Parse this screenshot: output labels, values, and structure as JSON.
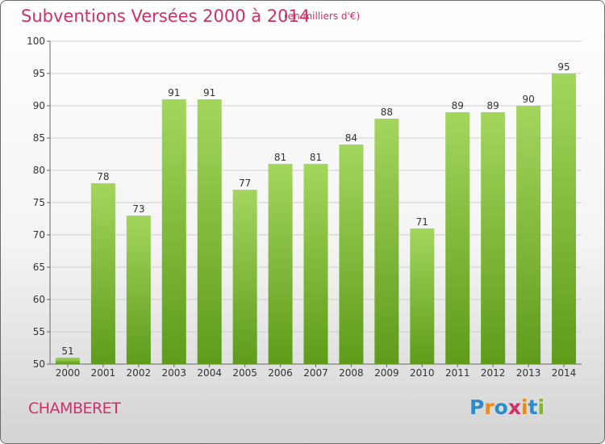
{
  "header": {
    "title": "Subventions Versées 2000 à 2014",
    "unit": "(en milliers d'€)"
  },
  "footer": {
    "commune": "CHAMBERET",
    "logo_text": "Proxiti"
  },
  "colors": {
    "title": "#d0306a",
    "bar_top": "#a4d65e",
    "bar_bottom": "#5e9c1a",
    "logo": [
      "#2e8ccb",
      "#e8891b",
      "#2e8ccb",
      "#d0306a",
      "#e8891b",
      "#2e8ccb",
      "#7cb82f"
    ]
  },
  "chart_data": {
    "type": "bar",
    "title": "Subventions Versées 2000 à 2014",
    "subtitle": "(en milliers d'€)",
    "categories": [
      "2000",
      "2001",
      "2002",
      "2003",
      "2004",
      "2005",
      "2006",
      "2007",
      "2008",
      "2009",
      "2010",
      "2011",
      "2012",
      "2013",
      "2014"
    ],
    "values": [
      51,
      78,
      73,
      91,
      91,
      77,
      81,
      81,
      84,
      88,
      71,
      89,
      89,
      90,
      95
    ],
    "ylim": [
      50,
      100
    ],
    "yticks": [
      50,
      55,
      60,
      65,
      70,
      75,
      80,
      85,
      90,
      95,
      100
    ],
    "grid": true,
    "xlabel": "",
    "ylabel": ""
  }
}
